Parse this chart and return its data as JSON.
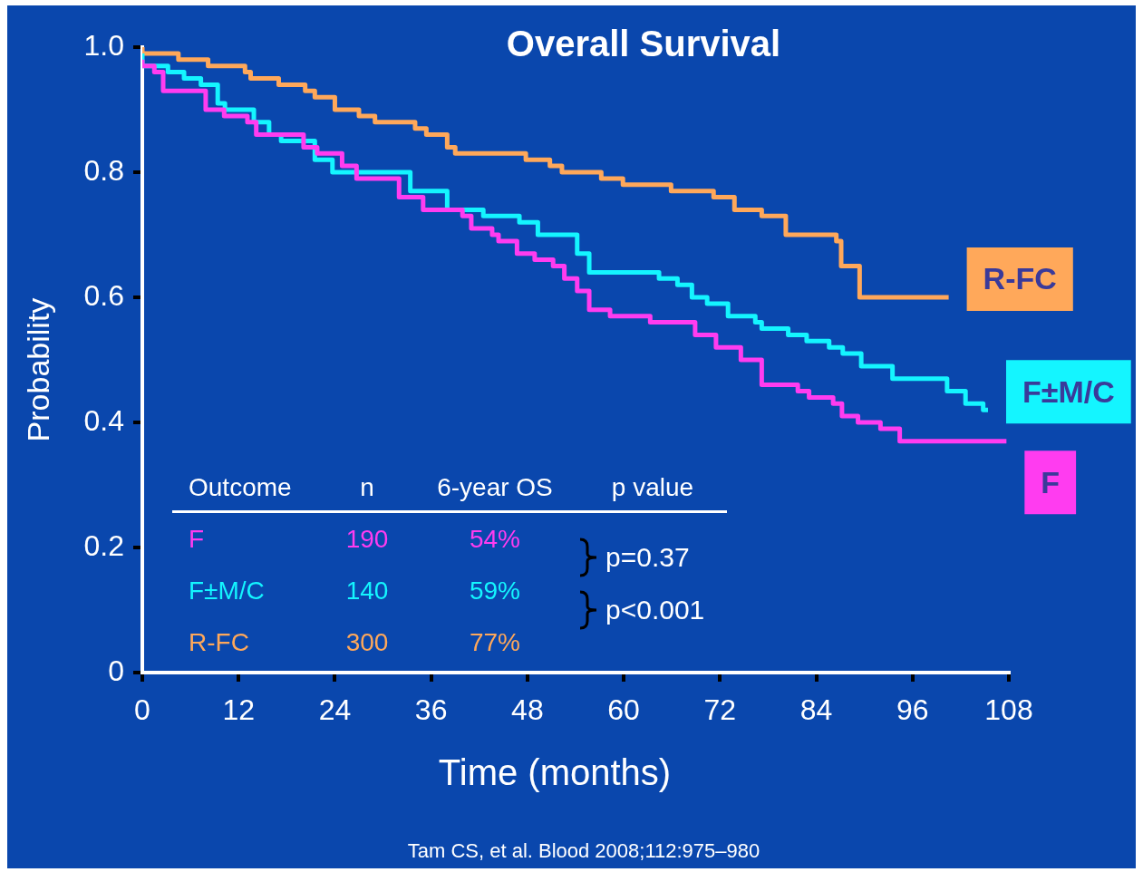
{
  "chart_data": {
    "type": "step",
    "title": "Overall Survival",
    "xlabel": "Time (months)",
    "ylabel": "Probability",
    "xlim": [
      0,
      108
    ],
    "xticks": [
      0,
      12,
      24,
      36,
      48,
      60,
      72,
      84,
      96,
      108
    ],
    "ylim": [
      0,
      1
    ],
    "yticks": [
      0,
      {
        "value": 0.2,
        "label": "0.2"
      },
      {
        "value": 0.4,
        "label": "0.4"
      },
      {
        "value": 0.6,
        "label": "0.6"
      },
      {
        "value": 0.8,
        "label": "0.8"
      },
      {
        "value": 1,
        "label": "1.0"
      }
    ],
    "grid": false,
    "legend": false,
    "marker": "none",
    "line_style": "solid",
    "series": [
      {
        "name": "F",
        "color": "#ff3cf0",
        "x": [
          0,
          1.5,
          2.6,
          7.9,
          10.2,
          13.1,
          14.2,
          20.1,
          21.8,
          24.9,
          26.7,
          32,
          35,
          39.9,
          41,
          43.6,
          44.4,
          46.7,
          48.9,
          51.2,
          52.6,
          54.2,
          55.7,
          58.3,
          63.3,
          68.9,
          71.5,
          74.6,
          77.2,
          81.7,
          83.1,
          86.1,
          87.2,
          89.2,
          92,
          94.4,
          97.5,
          107.7
        ],
        "values": [
          0.98,
          0.97,
          0.96,
          0.93,
          0.9,
          0.89,
          0.88,
          0.86,
          0.84,
          0.83,
          0.81,
          0.79,
          0.76,
          0.74,
          0.73,
          0.71,
          0.7,
          0.69,
          0.67,
          0.66,
          0.65,
          0.63,
          0.61,
          0.58,
          0.57,
          0.56,
          0.54,
          0.52,
          0.5,
          0.46,
          0.45,
          0.44,
          0.43,
          0.41,
          0.4,
          0.39,
          0.37,
          0.37
        ]
      },
      {
        "name": "F±M/C",
        "color": "#14f5ff",
        "x": [
          0,
          3.2,
          5.2,
          7.3,
          9.4,
          10.3,
          13.9,
          15.8,
          17.3,
          21.5,
          23.7,
          33.4,
          38,
          42.5,
          47,
          49.3,
          54.2,
          55.7,
          64.4,
          66.7,
          68.5,
          70.4,
          73,
          76.4,
          77.2,
          80.5,
          82.8,
          85.6,
          87.3,
          89.6,
          93.5,
          100.3,
          102.6,
          104.8,
          105.4
        ],
        "values": [
          0.99,
          0.97,
          0.96,
          0.95,
          0.94,
          0.91,
          0.9,
          0.88,
          0.86,
          0.85,
          0.82,
          0.8,
          0.77,
          0.74,
          0.73,
          0.72,
          0.7,
          0.67,
          0.64,
          0.63,
          0.62,
          0.6,
          0.59,
          0.57,
          0.56,
          0.55,
          0.54,
          0.53,
          0.52,
          0.51,
          0.49,
          0.47,
          0.45,
          0.43,
          0.42
        ]
      },
      {
        "name": "R-FC",
        "color": "#ffa85a",
        "x": [
          0,
          4.5,
          8.2,
          12.8,
          13.5,
          17,
          20.3,
          21.5,
          24,
          27,
          29,
          34,
          35.4,
          38,
          39,
          47.8,
          50.8,
          52.3,
          57.2,
          59.9,
          65.9,
          71.2,
          73.8,
          77.2,
          80.2,
          86.5,
          87.1,
          89.4,
          94.3,
          100.5
        ],
        "values": [
          1,
          0.99,
          0.98,
          0.97,
          0.96,
          0.95,
          0.94,
          0.93,
          0.92,
          0.9,
          0.89,
          0.88,
          0.87,
          0.86,
          0.84,
          0.83,
          0.82,
          0.81,
          0.8,
          0.79,
          0.78,
          0.77,
          0.76,
          0.74,
          0.73,
          0.7,
          0.69,
          0.65,
          0.6,
          0.6
        ]
      }
    ],
    "annotations": [
      "Outcome",
      "n",
      "6-year OS",
      "p value",
      "F",
      "190",
      "54%",
      "F±M/C",
      "140",
      "59%",
      "R-FC",
      "300",
      "77%",
      "p=0.37",
      "p<0.001",
      "Tam CS, et al. Blood 2008;112:975–980"
    ]
  }
}
